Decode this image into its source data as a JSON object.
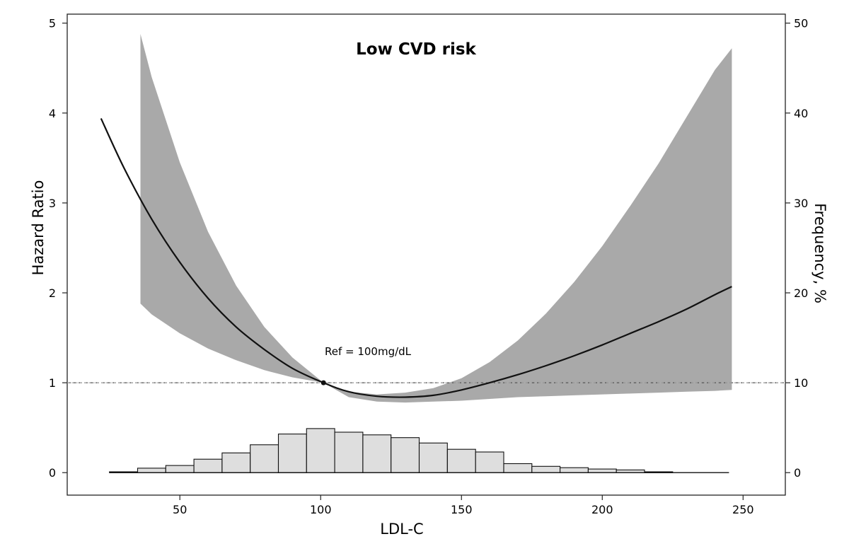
{
  "chart_data": {
    "type": "line",
    "title": "Low CVD risk",
    "xlabel": "LDL-C",
    "ylabel": "Hazard Ratio",
    "y2label": "Frequency, %",
    "xlim": [
      10,
      265
    ],
    "ylim": [
      -0.25,
      5.1
    ],
    "y2lim": [
      -2.5,
      51
    ],
    "x_ticks": [
      50,
      100,
      150,
      200,
      250
    ],
    "y_ticks": [
      0,
      1,
      2,
      3,
      4,
      5
    ],
    "y2_ticks": [
      0,
      10,
      20,
      30,
      40,
      50
    ],
    "reference": {
      "label": "Ref = 100mg/dL",
      "x": 101,
      "y": 1
    },
    "hazard_ratio": {
      "x": [
        22,
        30,
        40,
        50,
        60,
        70,
        80,
        90,
        101,
        110,
        120,
        130,
        140,
        150,
        160,
        170,
        180,
        190,
        200,
        210,
        220,
        230,
        240,
        246
      ],
      "values": [
        3.94,
        3.4,
        2.82,
        2.34,
        1.94,
        1.62,
        1.37,
        1.16,
        1.0,
        0.9,
        0.85,
        0.84,
        0.86,
        0.92,
        1.0,
        1.09,
        1.19,
        1.3,
        1.42,
        1.55,
        1.68,
        1.82,
        1.98,
        2.07
      ]
    },
    "confidence_band": {
      "x": [
        36,
        40,
        50,
        60,
        70,
        80,
        90,
        101,
        110,
        120,
        130,
        140,
        150,
        160,
        170,
        180,
        190,
        200,
        210,
        220,
        230,
        240,
        246
      ],
      "lower": [
        1.88,
        1.76,
        1.55,
        1.38,
        1.25,
        1.14,
        1.06,
        1.0,
        0.84,
        0.79,
        0.78,
        0.79,
        0.8,
        0.82,
        0.84,
        0.85,
        0.86,
        0.87,
        0.88,
        0.89,
        0.9,
        0.91,
        0.92
      ],
      "upper": [
        4.88,
        4.4,
        3.45,
        2.68,
        2.08,
        1.62,
        1.28,
        1.0,
        0.9,
        0.87,
        0.89,
        0.94,
        1.05,
        1.23,
        1.47,
        1.77,
        2.12,
        2.52,
        2.97,
        3.44,
        3.96,
        4.48,
        4.72
      ]
    },
    "frequency_histogram": {
      "bin_edges": [
        25,
        35,
        45,
        55,
        65,
        75,
        85,
        95,
        105,
        115,
        125,
        135,
        145,
        155,
        165,
        175,
        185,
        195,
        205,
        215,
        225
      ],
      "values": [
        0.1,
        0.5,
        0.8,
        1.5,
        2.2,
        3.1,
        4.3,
        4.9,
        4.5,
        4.2,
        3.9,
        3.3,
        2.6,
        2.3,
        1.0,
        0.7,
        0.55,
        0.4,
        0.3,
        0.1
      ]
    }
  }
}
